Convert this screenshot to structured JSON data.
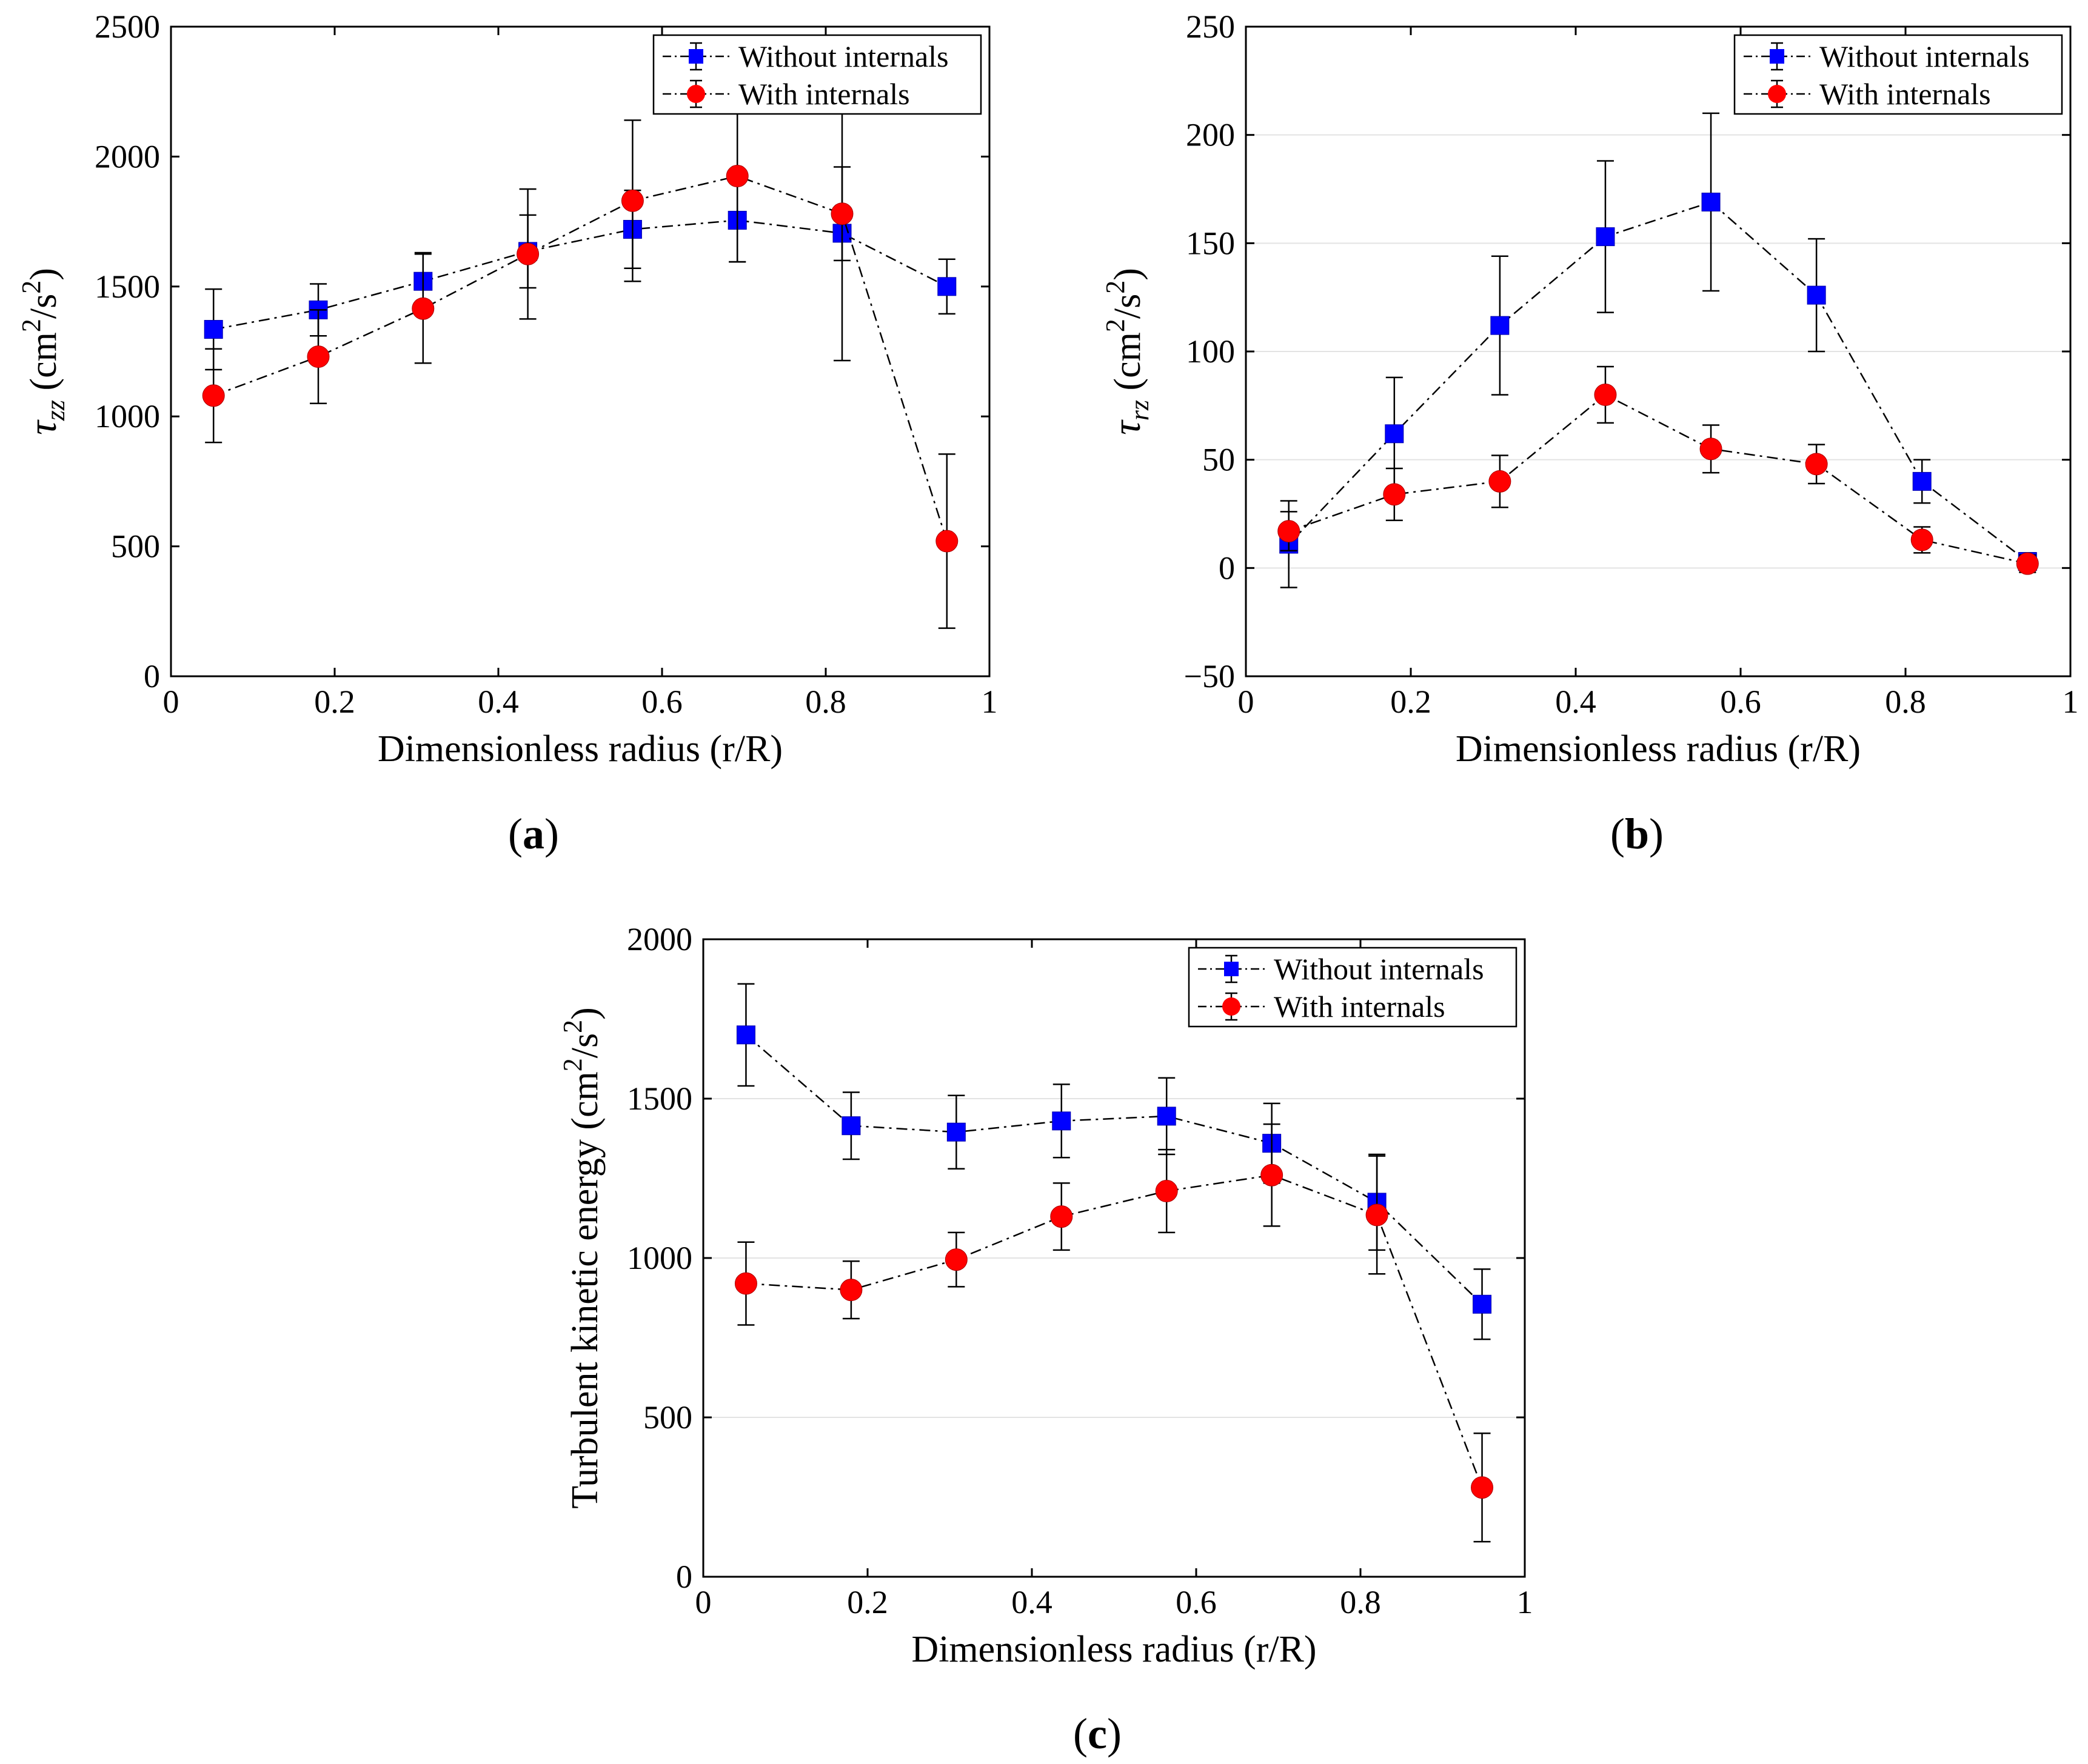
{
  "chart_data": [
    {
      "id": "a",
      "type": "line",
      "panel_label": "(a)",
      "panel_label_letter": "a",
      "xlabel": "Dimensionless radius (r/R)",
      "ylabel_symbol": "τ",
      "ylabel_sub": "zz",
      "ylabel_unit_prefix": "(cm",
      "ylabel_unit_mid": "/s",
      "ylabel_unit_suffix": ")",
      "ylabel_sup": "2",
      "xlim": [
        0,
        1
      ],
      "ylim": [
        0,
        2500
      ],
      "xticks": [
        0,
        0.2,
        0.4,
        0.6,
        0.8,
        1
      ],
      "xtick_labels": [
        "0",
        "0.2",
        "0.4",
        "0.6",
        "0.8",
        "1"
      ],
      "yticks": [
        0,
        500,
        1000,
        1500,
        2000,
        2500
      ],
      "ytick_labels": [
        "0",
        "500",
        "1000",
        "1500",
        "2000",
        "2500"
      ],
      "grid": false,
      "legend_position": "top-right",
      "x": [
        0.052,
        0.18,
        0.308,
        0.436,
        0.564,
        0.692,
        0.82,
        0.948
      ],
      "series": [
        {
          "name": "Without internals",
          "marker": "square",
          "color": "#0000ff",
          "values": [
            1335,
            1410,
            1520,
            1635,
            1720,
            1755,
            1705,
            1500
          ],
          "err": [
            155,
            100,
            110,
            140,
            150,
            160,
            490,
            105
          ]
        },
        {
          "name": "With internals",
          "marker": "circle",
          "color": "#ff0000",
          "values": [
            1080,
            1230,
            1415,
            1625,
            1830,
            1925,
            1780,
            520
          ],
          "err": [
            180,
            180,
            210,
            250,
            310,
            330,
            180,
            335
          ]
        }
      ]
    },
    {
      "id": "b",
      "type": "line",
      "panel_label": "(b)",
      "panel_label_letter": "b",
      "xlabel": "Dimensionless radius (r/R)",
      "ylabel_symbol": "τ",
      "ylabel_sub": "rz",
      "ylabel_unit_prefix": "(cm",
      "ylabel_unit_mid": "/s",
      "ylabel_unit_suffix": ")",
      "ylabel_sup": "2",
      "xlim": [
        0,
        1
      ],
      "ylim": [
        -50,
        250
      ],
      "xticks": [
        0,
        0.2,
        0.4,
        0.6,
        0.8,
        1
      ],
      "xtick_labels": [
        "0",
        "0.2",
        "0.4",
        "0.6",
        "0.8",
        "1"
      ],
      "yticks": [
        -50,
        0,
        50,
        100,
        150,
        200,
        250
      ],
      "ytick_labels": [
        "−50",
        "0",
        "50",
        "100",
        "150",
        "200",
        "250"
      ],
      "grid": true,
      "legend_position": "top-right",
      "x": [
        0.052,
        0.18,
        0.308,
        0.436,
        0.564,
        0.692,
        0.82,
        0.948
      ],
      "series": [
        {
          "name": "Without internals",
          "marker": "square",
          "color": "#0000ff",
          "values": [
            11,
            62,
            112,
            153,
            169,
            126,
            40,
            3
          ],
          "err": [
            20,
            26,
            32,
            35,
            41,
            26,
            10,
            4
          ]
        },
        {
          "name": "With internals",
          "marker": "circle",
          "color": "#ff0000",
          "values": [
            17,
            34,
            40,
            80,
            55,
            48,
            13,
            2
          ],
          "err": [
            9,
            12,
            12,
            13,
            11,
            9,
            6,
            4
          ]
        }
      ]
    },
    {
      "id": "c",
      "type": "line",
      "panel_label": "(c)",
      "panel_label_letter": "c",
      "xlabel": "Dimensionless radius (r/R)",
      "ylabel_symbol": "",
      "ylabel_sub": "",
      "ylabel_unit_prefix": "Turbulent kinetic energy (cm",
      "ylabel_unit_mid": "/s",
      "ylabel_unit_suffix": ")",
      "ylabel_sup": "2",
      "xlim": [
        0,
        1
      ],
      "ylim": [
        0,
        2000
      ],
      "xticks": [
        0,
        0.2,
        0.4,
        0.6,
        0.8,
        1
      ],
      "xtick_labels": [
        "0",
        "0.2",
        "0.4",
        "0.6",
        "0.8",
        "1"
      ],
      "yticks": [
        0,
        500,
        1000,
        1500,
        2000
      ],
      "ytick_labels": [
        "0",
        "500",
        "1000",
        "1500",
        "2000"
      ],
      "grid": true,
      "legend_position": "top-right",
      "x": [
        0.052,
        0.18,
        0.308,
        0.436,
        0.564,
        0.692,
        0.82,
        0.948
      ],
      "series": [
        {
          "name": "Without internals",
          "marker": "square",
          "color": "#0000ff",
          "values": [
            1700,
            1415,
            1395,
            1430,
            1445,
            1360,
            1175,
            855
          ],
          "err": [
            160,
            105,
            115,
            115,
            120,
            125,
            150,
            110
          ]
        },
        {
          "name": "With internals",
          "marker": "circle",
          "color": "#ff0000",
          "values": [
            920,
            900,
            995,
            1130,
            1210,
            1260,
            1135,
            280
          ],
          "err": [
            130,
            90,
            85,
            105,
            130,
            160,
            185,
            170
          ]
        }
      ]
    }
  ]
}
